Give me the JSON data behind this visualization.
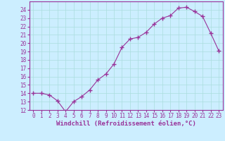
{
  "x": [
    0,
    1,
    2,
    3,
    4,
    5,
    6,
    7,
    8,
    9,
    10,
    11,
    12,
    13,
    14,
    15,
    16,
    17,
    18,
    19,
    20,
    21,
    22,
    23
  ],
  "y": [
    14,
    14,
    13.8,
    13.1,
    11.8,
    13.0,
    13.6,
    14.4,
    15.6,
    16.3,
    17.5,
    19.5,
    20.5,
    20.7,
    21.3,
    22.3,
    23.0,
    23.3,
    24.2,
    24.3,
    23.8,
    23.2,
    21.2,
    19.1
  ],
  "line_color": "#993399",
  "marker": "+",
  "marker_size": 4,
  "bg_color": "#cceeff",
  "grid_color": "#aadddd",
  "xlabel": "Windchill (Refroidissement éolien,°C)",
  "ylim": [
    12,
    25
  ],
  "xlim": [
    -0.5,
    23.5
  ],
  "yticks": [
    12,
    13,
    14,
    15,
    16,
    17,
    18,
    19,
    20,
    21,
    22,
    23,
    24
  ],
  "xticks": [
    0,
    1,
    2,
    3,
    4,
    5,
    6,
    7,
    8,
    9,
    10,
    11,
    12,
    13,
    14,
    15,
    16,
    17,
    18,
    19,
    20,
    21,
    22,
    23
  ],
  "tick_fontsize": 5.5,
  "xlabel_fontsize": 6.5,
  "label_color": "#993399"
}
